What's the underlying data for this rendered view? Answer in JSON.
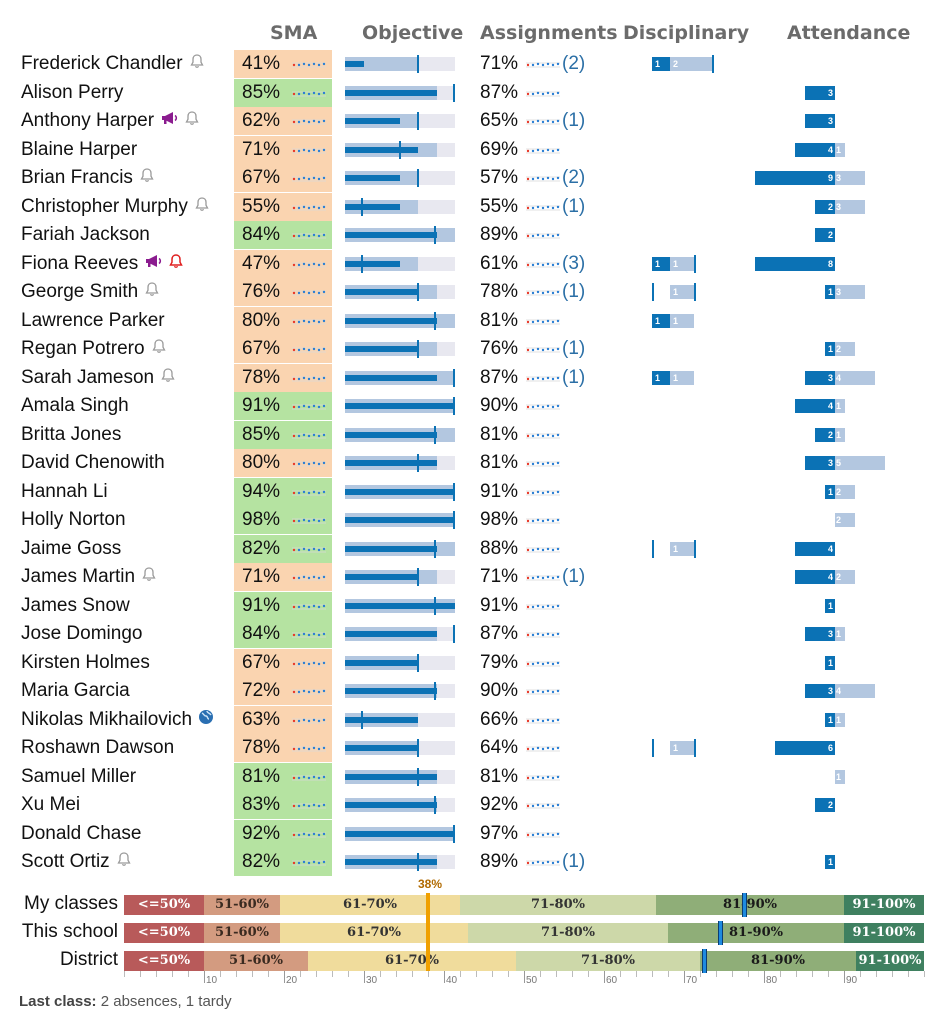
{
  "headers": {
    "sma": "SMA",
    "objective": "Objective",
    "assignments": "Assignments",
    "disciplinary": "Disciplinary",
    "attendance": "Attendance"
  },
  "colors": {
    "low": "#fad4b0",
    "high": "#b5e3a1",
    "bar": "#0b72b5",
    "range": "#b3c7e0",
    "sparkRed": "#e8392a",
    "sparkBlue": "#2a7fd4"
  },
  "students": [
    {
      "name": "Frederick Chandler",
      "icons": [
        "bell-icon"
      ],
      "sma": "41%",
      "sma_level": "low",
      "obj": {
        "bar": 0.17,
        "range": 0.66,
        "tick": 0.66
      },
      "asg": "71%",
      "asg_count": "(2)",
      "disc": {
        "cur": "1",
        "prev": "2",
        "curw": 0.3,
        "prevw": 1.0,
        "tick": 1.0
      },
      "att": null
    },
    {
      "name": "Alison Perry",
      "icons": [],
      "sma": "85%",
      "sma_level": "high",
      "obj": {
        "bar": 0.84,
        "range": 0.84,
        "tick": 0.99
      },
      "asg": "87%",
      "asg_count": "",
      "disc": null,
      "att": {
        "cur": "3",
        "prev": "",
        "curw": 0.3,
        "prevw": 0
      }
    },
    {
      "name": "Anthony Harper",
      "icons": [
        "megaphone-icon",
        "bell-icon"
      ],
      "sma": "62%",
      "sma_level": "low",
      "obj": {
        "bar": 0.5,
        "range": 0.66,
        "tick": 0.66
      },
      "asg": "65%",
      "asg_count": "(1)",
      "disc": null,
      "att": {
        "cur": "3",
        "prev": "",
        "curw": 0.3,
        "prevw": 0
      }
    },
    {
      "name": "Blaine Harper",
      "icons": [],
      "sma": "71%",
      "sma_level": "low",
      "obj": {
        "bar": 0.66,
        "range": 0.84,
        "tick": 0.5
      },
      "asg": "69%",
      "asg_count": "",
      "disc": null,
      "att": {
        "cur": "4",
        "prev": "1",
        "curw": 0.4,
        "prevw": 0.1
      }
    },
    {
      "name": "Brian Francis",
      "icons": [
        "bell-icon"
      ],
      "sma": "67%",
      "sma_level": "low",
      "obj": {
        "bar": 0.5,
        "range": 0.66,
        "tick": 0.66
      },
      "asg": "57%",
      "asg_count": "(2)",
      "disc": null,
      "att": {
        "cur": "9",
        "prev": "3",
        "curw": 0.8,
        "prevw": 0.3
      }
    },
    {
      "name": "Christopher Murphy",
      "icons": [
        "bell-icon"
      ],
      "sma": "55%",
      "sma_level": "low",
      "obj": {
        "bar": 0.5,
        "range": 0.66,
        "tick": 0.15
      },
      "asg": "55%",
      "asg_count": "(1)",
      "disc": null,
      "att": {
        "cur": "2",
        "prev": "3",
        "curw": 0.2,
        "prevw": 0.3
      }
    },
    {
      "name": "Fariah Jackson",
      "icons": [],
      "sma": "84%",
      "sma_level": "high",
      "obj": {
        "bar": 0.84,
        "range": 1.0,
        "tick": 0.82
      },
      "asg": "89%",
      "asg_count": "",
      "disc": null,
      "att": {
        "cur": "2",
        "prev": "",
        "curw": 0.2,
        "prevw": 0
      }
    },
    {
      "name": "Fiona Reeves",
      "icons": [
        "megaphone-icon",
        "bell-red-icon"
      ],
      "sma": "47%",
      "sma_level": "low",
      "obj": {
        "bar": 0.5,
        "range": 0.66,
        "tick": 0.15
      },
      "asg": "61%",
      "asg_count": "(3)",
      "disc": {
        "cur": "1",
        "prev": "1",
        "curw": 0.3,
        "prevw": 0.7,
        "tick": 0.7
      },
      "att": {
        "cur": "8",
        "prev": "",
        "curw": 0.8,
        "prevw": 0
      }
    },
    {
      "name": "George Smith",
      "icons": [
        "bell-icon"
      ],
      "sma": "76%",
      "sma_level": "low",
      "obj": {
        "bar": 0.66,
        "range": 0.84,
        "tick": 0.66
      },
      "asg": "78%",
      "asg_count": "(1)",
      "disc": {
        "cur": "",
        "prev": "1",
        "curw": 0.0,
        "prevw": 0.7,
        "tick": 0.7
      },
      "att": {
        "cur": "1",
        "prev": "3",
        "curw": 0.1,
        "prevw": 0.3
      }
    },
    {
      "name": "Lawrence Parker",
      "icons": [],
      "sma": "80%",
      "sma_level": "low",
      "obj": {
        "bar": 0.84,
        "range": 1.0,
        "tick": 0.82
      },
      "asg": "81%",
      "asg_count": "",
      "disc": {
        "cur": "1",
        "prev": "1",
        "curw": 0.3,
        "prevw": 0.7,
        "tick": null
      },
      "att": null
    },
    {
      "name": "Regan Potrero",
      "icons": [
        "bell-icon"
      ],
      "sma": "67%",
      "sma_level": "low",
      "obj": {
        "bar": 0.66,
        "range": 0.84,
        "tick": 0.66
      },
      "asg": "76%",
      "asg_count": "(1)",
      "disc": null,
      "att": {
        "cur": "1",
        "prev": "2",
        "curw": 0.1,
        "prevw": 0.2
      }
    },
    {
      "name": "Sarah Jameson",
      "icons": [
        "bell-icon"
      ],
      "sma": "78%",
      "sma_level": "low",
      "obj": {
        "bar": 0.84,
        "range": 1.0,
        "tick": 0.99
      },
      "asg": "87%",
      "asg_count": "(1)",
      "disc": {
        "cur": "1",
        "prev": "1",
        "curw": 0.3,
        "prevw": 0.7,
        "tick": null
      },
      "att": {
        "cur": "3",
        "prev": "4",
        "curw": 0.3,
        "prevw": 0.4
      }
    },
    {
      "name": "Amala Singh",
      "icons": [],
      "sma": "91%",
      "sma_level": "high",
      "obj": {
        "bar": 1.0,
        "range": 1.0,
        "tick": 0.99
      },
      "asg": "90%",
      "asg_count": "",
      "disc": null,
      "att": {
        "cur": "4",
        "prev": "1",
        "curw": 0.4,
        "prevw": 0.1
      }
    },
    {
      "name": "Britta Jones",
      "icons": [],
      "sma": "85%",
      "sma_level": "high",
      "obj": {
        "bar": 0.84,
        "range": 1.0,
        "tick": 0.82
      },
      "asg": "81%",
      "asg_count": "",
      "disc": null,
      "att": {
        "cur": "2",
        "prev": "1",
        "curw": 0.2,
        "prevw": 0.1
      }
    },
    {
      "name": "David Chenowith",
      "icons": [],
      "sma": "80%",
      "sma_level": "low",
      "obj": {
        "bar": 0.84,
        "range": 0.84,
        "tick": 0.66
      },
      "asg": "81%",
      "asg_count": "",
      "disc": null,
      "att": {
        "cur": "3",
        "prev": "5",
        "curw": 0.3,
        "prevw": 0.5
      }
    },
    {
      "name": "Hannah Li",
      "icons": [],
      "sma": "94%",
      "sma_level": "high",
      "obj": {
        "bar": 1.0,
        "range": 1.0,
        "tick": 0.99
      },
      "asg": "91%",
      "asg_count": "",
      "disc": null,
      "att": {
        "cur": "1",
        "prev": "2",
        "curw": 0.1,
        "prevw": 0.2
      }
    },
    {
      "name": "Holly Norton",
      "icons": [],
      "sma": "98%",
      "sma_level": "high",
      "obj": {
        "bar": 1.0,
        "range": 1.0,
        "tick": 0.99
      },
      "asg": "98%",
      "asg_count": "",
      "disc": null,
      "att": {
        "cur": "",
        "prev": "2",
        "curw": 0.0,
        "prevw": 0.2
      }
    },
    {
      "name": "Jaime Goss",
      "icons": [],
      "sma": "82%",
      "sma_level": "high",
      "obj": {
        "bar": 0.84,
        "range": 1.0,
        "tick": 0.82
      },
      "asg": "88%",
      "asg_count": "",
      "disc": {
        "cur": "",
        "prev": "1",
        "curw": 0.0,
        "prevw": 0.7,
        "tick": 0.7
      },
      "att": {
        "cur": "4",
        "prev": "",
        "curw": 0.4,
        "prevw": 0
      }
    },
    {
      "name": "James Martin",
      "icons": [
        "bell-icon"
      ],
      "sma": "71%",
      "sma_level": "low",
      "obj": {
        "bar": 0.66,
        "range": 0.84,
        "tick": 0.66
      },
      "asg": "71%",
      "asg_count": "(1)",
      "disc": null,
      "att": {
        "cur": "4",
        "prev": "2",
        "curw": 0.4,
        "prevw": 0.2
      }
    },
    {
      "name": "James Snow",
      "icons": [],
      "sma": "91%",
      "sma_level": "high",
      "obj": {
        "bar": 1.0,
        "range": 1.0,
        "tick": 0.82
      },
      "asg": "91%",
      "asg_count": "",
      "disc": null,
      "att": {
        "cur": "1",
        "prev": "",
        "curw": 0.1,
        "prevw": 0
      }
    },
    {
      "name": "Jose Domingo",
      "icons": [],
      "sma": "84%",
      "sma_level": "high",
      "obj": {
        "bar": 0.84,
        "range": 0.84,
        "tick": 0.99
      },
      "asg": "87%",
      "asg_count": "",
      "disc": null,
      "att": {
        "cur": "3",
        "prev": "1",
        "curw": 0.3,
        "prevw": 0.1
      }
    },
    {
      "name": "Kirsten Holmes",
      "icons": [],
      "sma": "67%",
      "sma_level": "low",
      "obj": {
        "bar": 0.66,
        "range": 0.66,
        "tick": 0.66
      },
      "asg": "79%",
      "asg_count": "",
      "disc": null,
      "att": {
        "cur": "1",
        "prev": "",
        "curw": 0.1,
        "prevw": 0
      }
    },
    {
      "name": "Maria Garcia",
      "icons": [],
      "sma": "72%",
      "sma_level": "low",
      "obj": {
        "bar": 0.84,
        "range": 0.84,
        "tick": 0.82
      },
      "asg": "90%",
      "asg_count": "",
      "disc": null,
      "att": {
        "cur": "3",
        "prev": "4",
        "curw": 0.3,
        "prevw": 0.4
      }
    },
    {
      "name": "Nikolas Mikhailovich",
      "icons": [
        "globe-icon"
      ],
      "sma": "63%",
      "sma_level": "low",
      "obj": {
        "bar": 0.66,
        "range": 0.66,
        "tick": 0.15
      },
      "asg": "66%",
      "asg_count": "",
      "disc": null,
      "att": {
        "cur": "1",
        "prev": "1",
        "curw": 0.1,
        "prevw": 0.1
      }
    },
    {
      "name": "Roshawn Dawson",
      "icons": [],
      "sma": "78%",
      "sma_level": "low",
      "obj": {
        "bar": 0.66,
        "range": 0.66,
        "tick": 0.66
      },
      "asg": "64%",
      "asg_count": "",
      "disc": {
        "cur": "",
        "prev": "1",
        "curw": 0.0,
        "prevw": 0.7,
        "tick": 0.7
      },
      "att": {
        "cur": "6",
        "prev": "",
        "curw": 0.6,
        "prevw": 0
      }
    },
    {
      "name": "Samuel Miller",
      "icons": [],
      "sma": "81%",
      "sma_level": "high",
      "obj": {
        "bar": 0.84,
        "range": 0.84,
        "tick": 0.66
      },
      "asg": "81%",
      "asg_count": "",
      "disc": null,
      "att": {
        "cur": "",
        "prev": "1",
        "curw": 0.0,
        "prevw": 0.1
      }
    },
    {
      "name": "Xu Mei",
      "icons": [],
      "sma": "83%",
      "sma_level": "high",
      "obj": {
        "bar": 0.84,
        "range": 0.84,
        "tick": 0.82
      },
      "asg": "92%",
      "asg_count": "",
      "disc": null,
      "att": {
        "cur": "2",
        "prev": "",
        "curw": 0.2,
        "prevw": 0
      }
    },
    {
      "name": "Donald Chase",
      "icons": [],
      "sma": "92%",
      "sma_level": "high",
      "obj": {
        "bar": 1.0,
        "range": 1.0,
        "tick": 0.99
      },
      "asg": "97%",
      "asg_count": "",
      "disc": null,
      "att": null
    },
    {
      "name": "Scott Ortiz",
      "icons": [
        "bell-icon"
      ],
      "sma": "82%",
      "sma_level": "high",
      "obj": {
        "bar": 0.84,
        "range": 0.84,
        "tick": 0.66
      },
      "asg": "89%",
      "asg_count": "(1)",
      "disc": null,
      "att": {
        "cur": "1",
        "prev": "",
        "curw": 0.1,
        "prevw": 0
      }
    }
  ],
  "distribution": {
    "current_label": "38%",
    "current_value": 38,
    "rows": [
      {
        "label": "My classes",
        "segments": [
          {
            "text": "<=50%",
            "end": 10
          },
          {
            "text": "51-60%",
            "end": 19.5
          },
          {
            "text": "61-70%",
            "end": 42
          },
          {
            "text": "71-80%",
            "end": 66.5
          },
          {
            "text": "81-90%",
            "end": 90
          },
          {
            "text": "91-100%",
            "end": 100
          }
        ],
        "marker": 77.5
      },
      {
        "label": "This school",
        "segments": [
          {
            "text": "<=50%",
            "end": 10
          },
          {
            "text": "51-60%",
            "end": 19.5
          },
          {
            "text": "61-70%",
            "end": 43
          },
          {
            "text": "71-80%",
            "end": 68
          },
          {
            "text": "81-90%",
            "end": 90
          },
          {
            "text": "91-100%",
            "end": 100
          }
        ],
        "marker": 74.5
      },
      {
        "label": "District",
        "segments": [
          {
            "text": "<=50%",
            "end": 10
          },
          {
            "text": "51-60%",
            "end": 23
          },
          {
            "text": "61-70%",
            "end": 49
          },
          {
            "text": "71-80%",
            "end": 72
          },
          {
            "text": "81-90%",
            "end": 91.5
          },
          {
            "text": "91-100%",
            "end": 100
          }
        ],
        "marker": 72.5
      }
    ],
    "segment_colors": [
      "#b85a5a",
      "#d39b80",
      "#f0dc9c",
      "#cdd8a9",
      "#8fae78",
      "#3f8060"
    ],
    "segment_text_colors": [
      "#ffffff",
      "#3a2a20",
      "#333333",
      "#333333",
      "#1a1a1a",
      "#ffffff"
    ],
    "axis_ticks": [
      "10",
      "20",
      "30",
      "40",
      "50",
      "60",
      "70",
      "80",
      "90"
    ]
  },
  "footer": {
    "label": "Last class:",
    "text": "2 absences, 1 tardy"
  }
}
